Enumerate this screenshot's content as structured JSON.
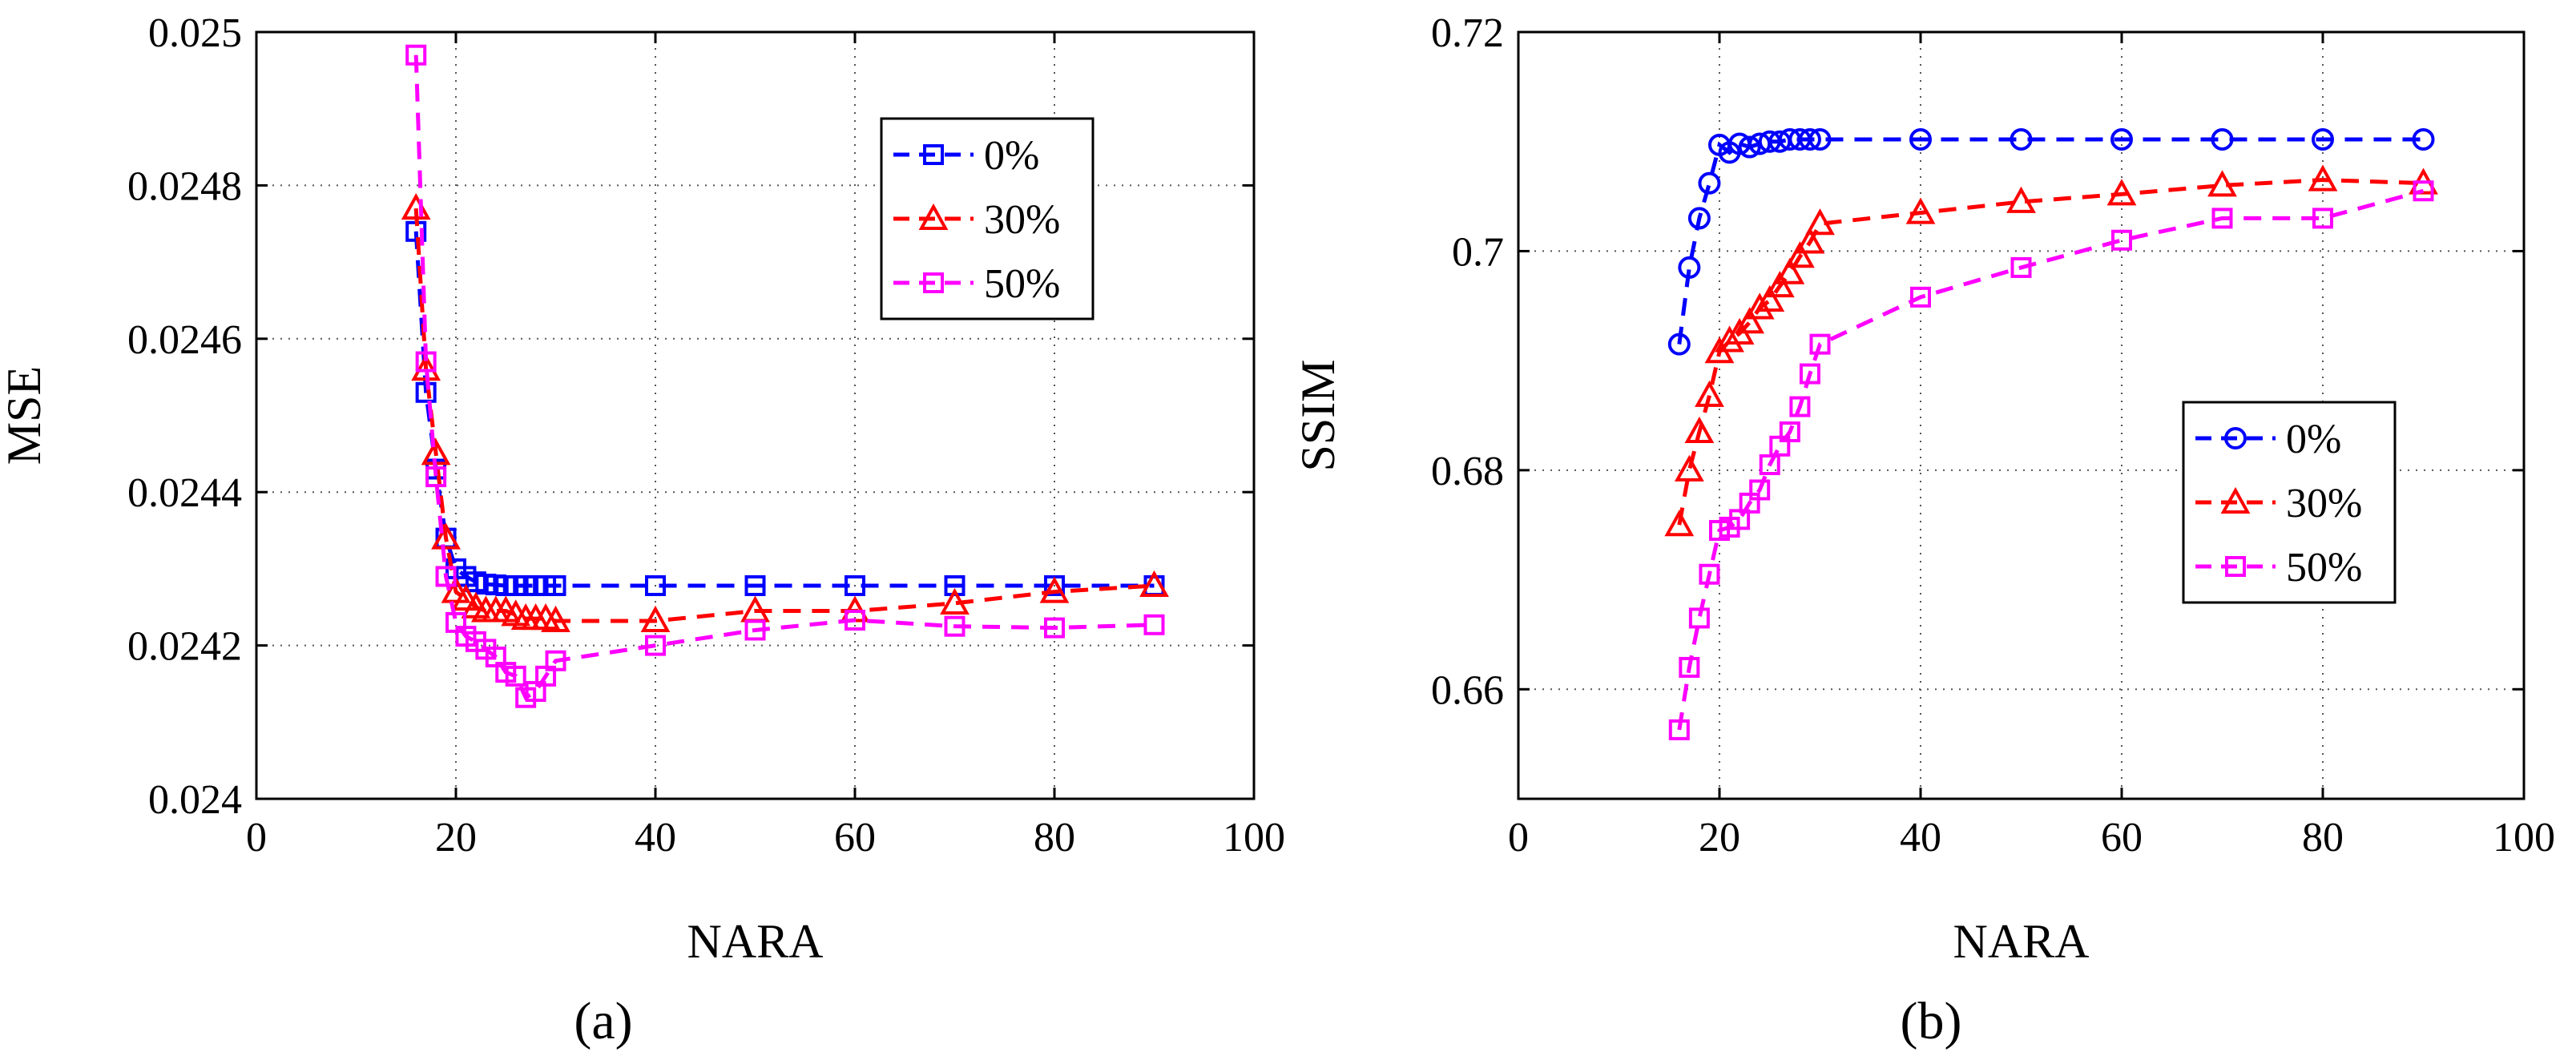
{
  "figure": {
    "panels": [
      "(a)",
      "(b)"
    ]
  },
  "chart_data": [
    {
      "type": "line",
      "panel_label": "a",
      "xlabel": "NARA",
      "ylabel": "MSE",
      "xlim": [
        0,
        100
      ],
      "ylim": [
        0.024,
        0.025
      ],
      "xticks": [
        0,
        20,
        40,
        60,
        80,
        100
      ],
      "xtick_labels": [
        "0",
        "20",
        "40",
        "60",
        "80",
        "100"
      ],
      "yticks": [
        0.024,
        0.0242,
        0.0244,
        0.0246,
        0.0248,
        0.025
      ],
      "ytick_labels": [
        "0.024",
        "0.0242",
        "0.0244",
        "0.0246",
        "0.0248",
        "0.025"
      ],
      "grid": true,
      "legend_position": "top-right",
      "series": [
        {
          "name": "0%",
          "color": "#0000ff",
          "marker": "square",
          "x": [
            16,
            17,
            18,
            19,
            20,
            21,
            22,
            23,
            24,
            25,
            26,
            27,
            28,
            29,
            30,
            40,
            50,
            60,
            70,
            80,
            90
          ],
          "y": [
            0.02474,
            0.02453,
            0.02443,
            0.02434,
            0.0243,
            0.02429,
            0.024283,
            0.02428,
            0.024279,
            0.024278,
            0.024278,
            0.024278,
            0.024278,
            0.024278,
            0.024278,
            0.024278,
            0.024278,
            0.024278,
            0.024278,
            0.024278,
            0.024278
          ]
        },
        {
          "name": "30%",
          "color": "#ff0000",
          "marker": "triangle",
          "x": [
            16,
            17,
            18,
            19,
            20,
            21,
            22,
            23,
            24,
            25,
            26,
            27,
            28,
            29,
            30,
            40,
            50,
            60,
            70,
            80,
            90
          ],
          "y": [
            0.02477,
            0.02456,
            0.02445,
            0.02434,
            0.02427,
            0.02426,
            0.02425,
            0.024245,
            0.024245,
            0.024245,
            0.02424,
            0.024235,
            0.024235,
            0.024235,
            0.024232,
            0.024232,
            0.024245,
            0.024245,
            0.024255,
            0.02427,
            0.024278
          ]
        },
        {
          "name": "50%",
          "color": "#ff00ff",
          "marker": "square",
          "x": [
            16,
            17,
            18,
            19,
            20,
            21,
            22,
            23,
            24,
            25,
            26,
            27,
            28,
            29,
            30,
            40,
            50,
            60,
            70,
            80,
            90
          ],
          "y": [
            0.02497,
            0.02457,
            0.02442,
            0.02429,
            0.02423,
            0.024212,
            0.024205,
            0.024195,
            0.024185,
            0.024165,
            0.02416,
            0.024132,
            0.02414,
            0.02416,
            0.02418,
            0.0242,
            0.02422,
            0.024233,
            0.024225,
            0.024223,
            0.024227
          ]
        }
      ]
    },
    {
      "type": "line",
      "panel_label": "b",
      "xlabel": "NARA",
      "ylabel": "SSIM",
      "xlim": [
        0,
        100
      ],
      "ylim": [
        0.65,
        0.72
      ],
      "xticks": [
        0,
        20,
        40,
        60,
        80,
        100
      ],
      "xtick_labels": [
        "0",
        "20",
        "40",
        "60",
        "80",
        "100"
      ],
      "yticks": [
        0.66,
        0.68,
        0.7,
        0.72
      ],
      "ytick_labels": [
        "0.66",
        "0.68",
        "0.7",
        "0.72"
      ],
      "grid": true,
      "legend_position": "middle-right",
      "series": [
        {
          "name": "0%",
          "color": "#0000ff",
          "marker": "circle",
          "x": [
            16,
            17,
            18,
            19,
            20,
            21,
            22,
            23,
            24,
            25,
            26,
            27,
            28,
            29,
            30,
            40,
            50,
            60,
            70,
            80,
            90
          ],
          "y": [
            0.6915,
            0.6985,
            0.703,
            0.7062,
            0.7097,
            0.709,
            0.7098,
            0.7095,
            0.7098,
            0.71,
            0.71,
            0.7102,
            0.7102,
            0.7102,
            0.7102,
            0.7102,
            0.7102,
            0.7102,
            0.7102,
            0.7102,
            0.7102
          ]
        },
        {
          "name": "30%",
          "color": "#ff0000",
          "marker": "triangle",
          "x": [
            16,
            17,
            18,
            19,
            20,
            21,
            22,
            23,
            24,
            25,
            26,
            27,
            28,
            29,
            30,
            40,
            50,
            60,
            70,
            80,
            90
          ],
          "y": [
            0.675,
            0.68,
            0.6835,
            0.6868,
            0.6908,
            0.6918,
            0.6925,
            0.6935,
            0.6948,
            0.6955,
            0.6968,
            0.698,
            0.6995,
            0.7008,
            0.7025,
            0.7035,
            0.7045,
            0.7052,
            0.706,
            0.7065,
            0.7062
          ]
        },
        {
          "name": "50%",
          "color": "#ff00ff",
          "marker": "square",
          "x": [
            16,
            17,
            18,
            19,
            20,
            21,
            22,
            23,
            24,
            25,
            26,
            27,
            28,
            29,
            30,
            40,
            50,
            60,
            70,
            80,
            90
          ],
          "y": [
            0.6563,
            0.662,
            0.6665,
            0.6705,
            0.6745,
            0.6748,
            0.6755,
            0.677,
            0.6782,
            0.6805,
            0.6822,
            0.6835,
            0.6858,
            0.6888,
            0.6915,
            0.6958,
            0.6985,
            0.701,
            0.703,
            0.703,
            0.7055
          ]
        }
      ]
    }
  ]
}
